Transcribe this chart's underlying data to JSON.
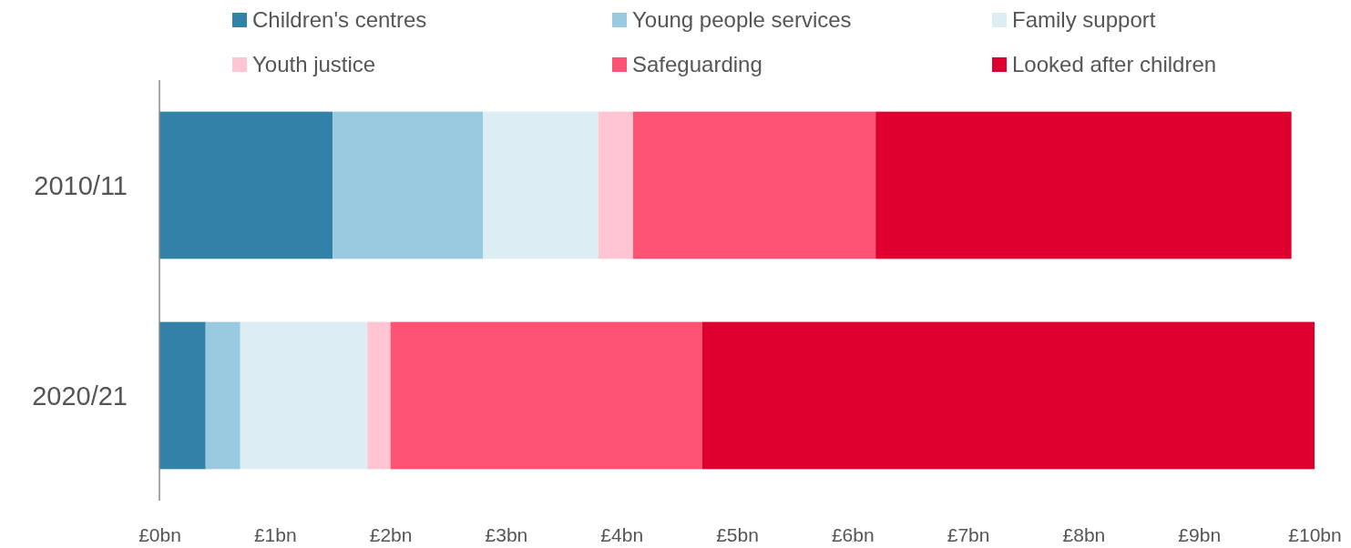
{
  "chart_data": {
    "type": "bar",
    "orientation": "horizontal",
    "stacked": true,
    "categories": [
      "2010/11",
      "2020/21"
    ],
    "series": [
      {
        "name": "Children's centres",
        "color": "#3182a6",
        "values": [
          1.5,
          0.4
        ]
      },
      {
        "name": "Young people services",
        "color": "#9acae0",
        "values": [
          1.3,
          0.3
        ]
      },
      {
        "name": "Family support",
        "color": "#ddedf4",
        "values": [
          1.0,
          1.1
        ]
      },
      {
        "name": "Youth justice",
        "color": "#ffc5d2",
        "values": [
          0.3,
          0.2
        ]
      },
      {
        "name": "Safeguarding",
        "color": "#ff5376",
        "values": [
          2.1,
          2.7
        ]
      },
      {
        "name": "Looked after children",
        "color": "#de002f",
        "values": [
          3.6,
          5.3
        ]
      }
    ],
    "xlim": [
      0,
      10
    ],
    "xticks": [
      {
        "value": 0,
        "label": "£0bn"
      },
      {
        "value": 1,
        "label": "£1bn"
      },
      {
        "value": 2,
        "label": "£2bn"
      },
      {
        "value": 3,
        "label": "£3bn"
      },
      {
        "value": 4,
        "label": "£4bn"
      },
      {
        "value": 5,
        "label": "£5bn"
      },
      {
        "value": 6,
        "label": "£6bn"
      },
      {
        "value": 7,
        "label": "£7bn"
      },
      {
        "value": 8,
        "label": "£8bn"
      },
      {
        "value": 9,
        "label": "£9bn"
      },
      {
        "value": 10,
        "label": "£10bn"
      }
    ],
    "legend": "top",
    "grid": false
  }
}
